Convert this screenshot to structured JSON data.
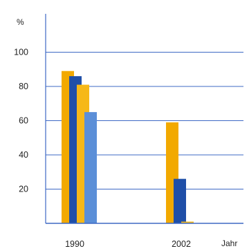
{
  "chart_data": {
    "type": "bar",
    "title": "",
    "xlabel": "Jahr",
    "ylabel": "%",
    "ylim": [
      0,
      110
    ],
    "y_ticks": [
      20,
      40,
      60,
      80,
      100
    ],
    "grid": true,
    "legend": "none",
    "categories": [
      "1990",
      "2002"
    ],
    "series": [
      {
        "color": "#f2a900",
        "values": [
          89,
          59
        ]
      },
      {
        "color": "#1f4fa8",
        "values": [
          86,
          26
        ]
      },
      {
        "color": "#f6b818",
        "values": [
          81,
          1
        ]
      },
      {
        "color": "#5b8fd8",
        "values": [
          65,
          0
        ]
      }
    ]
  }
}
